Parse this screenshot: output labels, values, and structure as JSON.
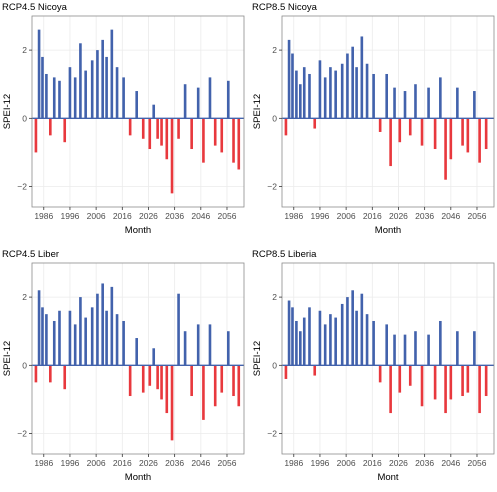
{
  "colors": {
    "positive": "#4262ac",
    "negative": "#e8383d",
    "grid": "#ebebeb",
    "border": "#8c8c8c"
  },
  "chart_data": [
    {
      "type": "bar",
      "title": "RCP4.5 Nicoya",
      "xlabel": "Month",
      "ylabel": "SPEI-12",
      "xlim": [
        1981.5,
        2062.5
      ],
      "ylim": [
        -2.6,
        3.0
      ],
      "x_ticks": [
        1986,
        1996,
        2006,
        2016,
        2026,
        2036,
        2046,
        2056
      ],
      "x_tick_labels": [
        "1986",
        "1996",
        "2006",
        "2016",
        "2026",
        "2036",
        "2046",
        "2056"
      ],
      "y_ticks": [
        -2,
        0,
        2
      ],
      "y_tick_labels": [
        "−2",
        "0",
        "2"
      ],
      "grid": true,
      "legend": "none",
      "series": [
        {
          "x": [
            1983.0,
            1984.2,
            1985.5,
            1987.0,
            1988.5,
            1990.0,
            1992.0,
            1994.0,
            1996.0,
            1998.0,
            2000.0,
            2002.0,
            2004.5,
            2006.5,
            2008.5,
            2010.0,
            2012.0,
            2014.0,
            2016.5,
            2019.0,
            2021.5,
            2024.0,
            2026.5,
            2028.0,
            2029.5,
            2031.0,
            2033.0,
            2035.0,
            2037.5,
            2040.0,
            2042.5,
            2045.0,
            2047.0,
            2049.5,
            2051.5,
            2054.0,
            2056.5,
            2058.5,
            2060.5
          ],
          "values": [
            -1.0,
            2.6,
            1.8,
            1.3,
            -0.5,
            1.2,
            1.1,
            -0.7,
            1.5,
            1.2,
            2.2,
            1.4,
            1.7,
            2.0,
            2.3,
            1.8,
            2.6,
            1.5,
            1.2,
            -0.5,
            0.8,
            -0.6,
            -0.9,
            0.4,
            -0.6,
            -0.8,
            -1.2,
            -2.2,
            -0.6,
            1.0,
            -0.9,
            0.9,
            -1.3,
            1.2,
            -0.8,
            -1.0,
            1.1,
            -1.3,
            -1.5
          ]
        }
      ]
    },
    {
      "type": "bar",
      "title": "RCP8.5 Nicoya",
      "xlabel": "Month",
      "ylabel": "SPEI-12",
      "xlim": [
        1981.5,
        2062.5
      ],
      "ylim": [
        -2.6,
        3.0
      ],
      "x_ticks": [
        1986,
        1996,
        2006,
        2016,
        2026,
        2036,
        2046,
        2056
      ],
      "x_tick_labels": [
        "1986",
        "1996",
        "2006",
        "2016",
        "2026",
        "2036",
        "2046",
        "2056"
      ],
      "y_ticks": [
        -2,
        0,
        2
      ],
      "y_tick_labels": [
        "−2",
        "0",
        "2"
      ],
      "grid": true,
      "legend": "none",
      "series": [
        {
          "x": [
            1983.0,
            1984.2,
            1985.5,
            1987.0,
            1988.5,
            1990.0,
            1992.0,
            1994.0,
            1996.0,
            1998.0,
            2000.0,
            2002.0,
            2004.5,
            2006.5,
            2008.5,
            2010.0,
            2012.0,
            2014.0,
            2016.5,
            2019.0,
            2021.5,
            2023.0,
            2024.5,
            2026.5,
            2028.5,
            2030.5,
            2032.5,
            2035.0,
            2037.5,
            2040.0,
            2042.0,
            2044.0,
            2046.0,
            2048.5,
            2050.5,
            2052.5,
            2055.0,
            2057.0,
            2059.5
          ],
          "values": [
            -0.5,
            2.3,
            1.9,
            1.4,
            1.0,
            1.5,
            1.3,
            -0.3,
            1.7,
            1.2,
            1.5,
            1.4,
            1.6,
            1.9,
            2.1,
            1.5,
            2.4,
            1.6,
            1.3,
            -0.4,
            1.3,
            -1.4,
            0.9,
            -0.7,
            0.8,
            -0.5,
            1.0,
            -0.8,
            0.9,
            -0.9,
            1.2,
            -1.8,
            -1.2,
            0.9,
            -0.8,
            -1.0,
            0.8,
            -1.3,
            -0.9
          ]
        }
      ]
    },
    {
      "type": "bar",
      "title": "RCP4.5 Liber",
      "xlabel": "Month",
      "ylabel": "SPEI-12",
      "xlim": [
        1981.5,
        2062.5
      ],
      "ylim": [
        -2.6,
        3.0
      ],
      "x_ticks": [
        1986,
        1996,
        2006,
        2016,
        2026,
        2036,
        2046,
        2056
      ],
      "x_tick_labels": [
        "1986",
        "1996",
        "2006",
        "2016",
        "2026",
        "2036",
        "2046",
        "2056"
      ],
      "y_ticks": [
        -2,
        0,
        2
      ],
      "y_tick_labels": [
        "−2",
        "0",
        "2"
      ],
      "grid": true,
      "legend": "none",
      "series": [
        {
          "x": [
            1983.0,
            1984.2,
            1985.5,
            1987.0,
            1988.5,
            1990.0,
            1992.0,
            1994.0,
            1996.0,
            1998.0,
            2000.0,
            2002.0,
            2004.5,
            2006.5,
            2008.5,
            2010.0,
            2012.0,
            2014.0,
            2016.5,
            2019.0,
            2021.5,
            2024.0,
            2026.5,
            2028.0,
            2029.5,
            2031.0,
            2033.0,
            2035.0,
            2037.5,
            2040.0,
            2042.5,
            2045.0,
            2047.0,
            2049.5,
            2051.5,
            2054.0,
            2056.5,
            2058.5,
            2060.5
          ],
          "values": [
            -0.5,
            2.2,
            1.7,
            1.5,
            -0.5,
            1.3,
            1.6,
            -0.7,
            1.6,
            1.2,
            2.0,
            1.4,
            1.7,
            2.1,
            2.4,
            1.6,
            2.3,
            1.5,
            1.3,
            -0.9,
            0.8,
            -0.8,
            -0.6,
            0.5,
            -0.7,
            -1.0,
            -1.4,
            -2.2,
            2.1,
            1.0,
            -0.9,
            1.2,
            -1.6,
            1.2,
            -1.2,
            -0.8,
            1.0,
            -0.9,
            -1.2
          ]
        }
      ]
    },
    {
      "type": "bar",
      "title": "RCP8.5 Liberia",
      "xlabel": "Mont",
      "ylabel": "SPEI-12",
      "xlim": [
        1981.5,
        2062.5
      ],
      "ylim": [
        -2.6,
        3.0
      ],
      "x_ticks": [
        1986,
        1996,
        2006,
        2016,
        2026,
        2036,
        2046,
        2056
      ],
      "x_tick_labels": [
        "1986",
        "1996",
        "2006",
        "2016",
        "2026",
        "2036",
        "2046",
        "2056"
      ],
      "y_ticks": [
        -2,
        0,
        2
      ],
      "y_tick_labels": [
        "−2",
        "0",
        "2"
      ],
      "grid": true,
      "legend": "none",
      "series": [
        {
          "x": [
            1983.0,
            1984.2,
            1985.5,
            1987.0,
            1988.5,
            1990.0,
            1992.0,
            1994.0,
            1996.0,
            1998.0,
            2000.0,
            2002.0,
            2004.5,
            2006.5,
            2008.5,
            2010.0,
            2012.0,
            2014.0,
            2016.5,
            2019.0,
            2021.5,
            2023.0,
            2024.5,
            2026.5,
            2028.5,
            2030.5,
            2032.5,
            2035.0,
            2037.5,
            2040.0,
            2042.0,
            2044.0,
            2046.0,
            2048.5,
            2050.5,
            2052.5,
            2055.0,
            2057.0,
            2059.5
          ],
          "values": [
            -0.4,
            1.9,
            1.7,
            1.3,
            1.0,
            1.4,
            1.7,
            -0.3,
            1.6,
            1.2,
            1.5,
            1.4,
            1.8,
            2.0,
            2.2,
            1.6,
            2.1,
            1.5,
            1.3,
            -0.5,
            1.2,
            -1.4,
            0.9,
            -0.8,
            0.9,
            -0.6,
            1.0,
            -1.2,
            0.9,
            -1.0,
            1.3,
            -1.4,
            -1.0,
            1.0,
            -0.9,
            -0.8,
            1.0,
            -1.4,
            -0.9
          ]
        }
      ]
    }
  ]
}
